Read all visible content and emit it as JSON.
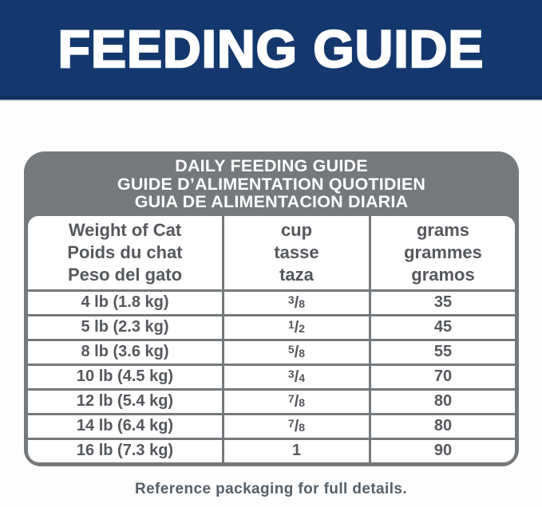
{
  "banner": {
    "title": "FEEDING GUIDE"
  },
  "table": {
    "title_lines": [
      "DAILY FEEDING GUIDE",
      "GUIDE D’ALIMENTATION QUOTIDIEN",
      "GUIA DE ALIMENTACION DIARIA"
    ],
    "column_headers": [
      [
        "Weight of Cat",
        "Poids du chat",
        "Peso del gato"
      ],
      [
        "cup",
        "tasse",
        "taza"
      ],
      [
        "grams",
        "grammes",
        "gramos"
      ]
    ],
    "rows": [
      {
        "weight": "4 lb (1.8 kg)",
        "cup": {
          "num": "3",
          "den": "8"
        },
        "grams": "35"
      },
      {
        "weight": "5 lb (2.3 kg)",
        "cup": {
          "num": "1",
          "den": "2"
        },
        "grams": "45"
      },
      {
        "weight": "8 lb (3.6 kg)",
        "cup": {
          "num": "5",
          "den": "8"
        },
        "grams": "55"
      },
      {
        "weight": "10 lb (4.5 kg)",
        "cup": {
          "num": "3",
          "den": "4"
        },
        "grams": "70"
      },
      {
        "weight": "12 lb (5.4 kg)",
        "cup": {
          "num": "7",
          "den": "8"
        },
        "grams": "80"
      },
      {
        "weight": "14 lb (6.4 kg)",
        "cup": {
          "num": "7",
          "den": "8"
        },
        "grams": "80"
      },
      {
        "weight": "16 lb (7.3 kg)",
        "cup": {
          "whole": "1"
        },
        "grams": "90"
      }
    ]
  },
  "footer": {
    "note": "Reference packaging for full details."
  },
  "colors": {
    "navy": "#14386d",
    "navy_dark": "#0e2f5c",
    "gray": "#75797c",
    "textgray": "#55585c",
    "footergray": "#566069",
    "white": "#ffffff"
  }
}
